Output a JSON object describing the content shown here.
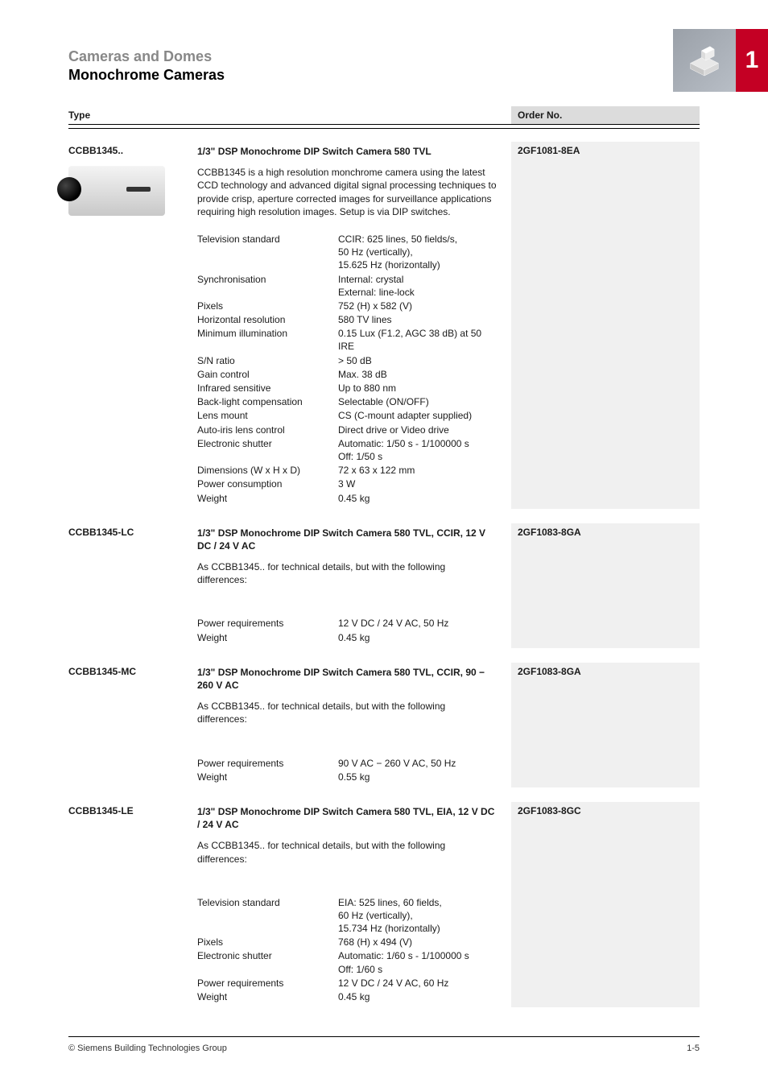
{
  "page": {
    "section_light": "Cameras and Domes",
    "section_bold": "Monochrome Cameras",
    "chapter_number": "1",
    "header_type": "Type",
    "header_order": "Order No.",
    "footer_left": "© Siemens Building Technologies Group",
    "footer_right": "1-5"
  },
  "colors": {
    "accent": "#c40024",
    "order_bg": "#f0f0f0",
    "header_order_bg": "#dcdcdc"
  },
  "products": [
    {
      "type_code": "CCBB1345..",
      "has_image": true,
      "title": "1/3\" DSP Monochrome DIP Switch Camera 580 TVL",
      "order_no": "2GF1081-8EA",
      "description": "CCBB1345 is a high resolution monchrome camera using the latest CCD technology and advanced digital signal processing techniques to provide crisp, aperture corrected images for surveillance applications requiring high resolution images. Setup is via DIP switches.",
      "specs": [
        {
          "label": "Television standard",
          "value": "CCIR: 625 lines, 50 fields/s,\n50 Hz (vertically),\n15.625 Hz (horizontally)"
        },
        {
          "label": "Synchronisation",
          "value": "Internal: crystal\nExternal: line-lock"
        },
        {
          "label": "Pixels",
          "value": "752 (H) x 582 (V)"
        },
        {
          "label": "Horizontal resolution",
          "value": "580 TV lines"
        },
        {
          "label": "Minimum illumination",
          "value": "0.15 Lux (F1.2, AGC 38 dB) at 50 IRE"
        },
        {
          "label": "S/N ratio",
          "value": "> 50 dB"
        },
        {
          "label": "Gain control",
          "value": "Max. 38 dB"
        },
        {
          "label": "Infrared sensitive",
          "value": "Up to 880 nm"
        },
        {
          "label": "Back-light compensation",
          "value": "Selectable (ON/OFF)"
        },
        {
          "label": "Lens mount",
          "value": "CS (C-mount adapter supplied)"
        },
        {
          "label": "Auto-iris lens control",
          "value": "Direct drive or Video drive"
        },
        {
          "label": "Electronic shutter",
          "value": "Automatic: 1/50 s - 1/100000 s\nOff: 1/50 s"
        },
        {
          "label": "Dimensions (W x H x D)",
          "value": "72 x 63 x 122 mm"
        },
        {
          "label": "Power consumption",
          "value": "3 W"
        },
        {
          "label": "Weight",
          "value": "0.45 kg"
        }
      ]
    },
    {
      "type_code": "CCBB1345-LC",
      "has_image": false,
      "title": "1/3\" DSP Monochrome DIP Switch Camera 580 TVL, CCIR, 12 V DC / 24 V AC",
      "order_no": "2GF1083-8GA",
      "description": "As CCBB1345.. for technical details, but with the following differences:",
      "specs": [
        {
          "label": "Power requirements",
          "value": "12 V DC / 24 V AC, 50 Hz"
        },
        {
          "label": "Weight",
          "value": "0.45  kg"
        }
      ]
    },
    {
      "type_code": "CCBB1345-MC",
      "has_image": false,
      "title": "1/3\" DSP Monochrome DIP Switch Camera 580 TVL, CCIR, 90 − 260 V AC",
      "order_no": "2GF1083-8GA",
      "description": "As CCBB1345.. for technical details, but with the following differences:",
      "specs": [
        {
          "label": "Power requirements",
          "value": "90 V AC − 260 V AC, 50 Hz"
        },
        {
          "label": "Weight",
          "value": "0.55 kg"
        }
      ]
    },
    {
      "type_code": "CCBB1345-LE",
      "has_image": false,
      "title": "1/3\" DSP Monochrome DIP Switch Camera 580 TVL, EIA, 12 V DC / 24 V AC",
      "order_no": "2GF1083-8GC",
      "description": "As CCBB1345.. for technical details, but with the following differences:",
      "specs": [
        {
          "label": "Television standard",
          "value": "EIA: 525 lines, 60 fields,\n60 Hz (vertically),\n15.734 Hz (horizontally)"
        },
        {
          "label": "Pixels",
          "value": "768 (H) x 494 (V)"
        },
        {
          "label": "Electronic shutter",
          "value": "Automatic: 1/60 s - 1/100000 s\nOff: 1/60 s"
        },
        {
          "label": "Power requirements",
          "value": "12 V DC / 24 V AC, 60 Hz"
        },
        {
          "label": "Weight",
          "value": "0.45  kg"
        }
      ]
    }
  ]
}
